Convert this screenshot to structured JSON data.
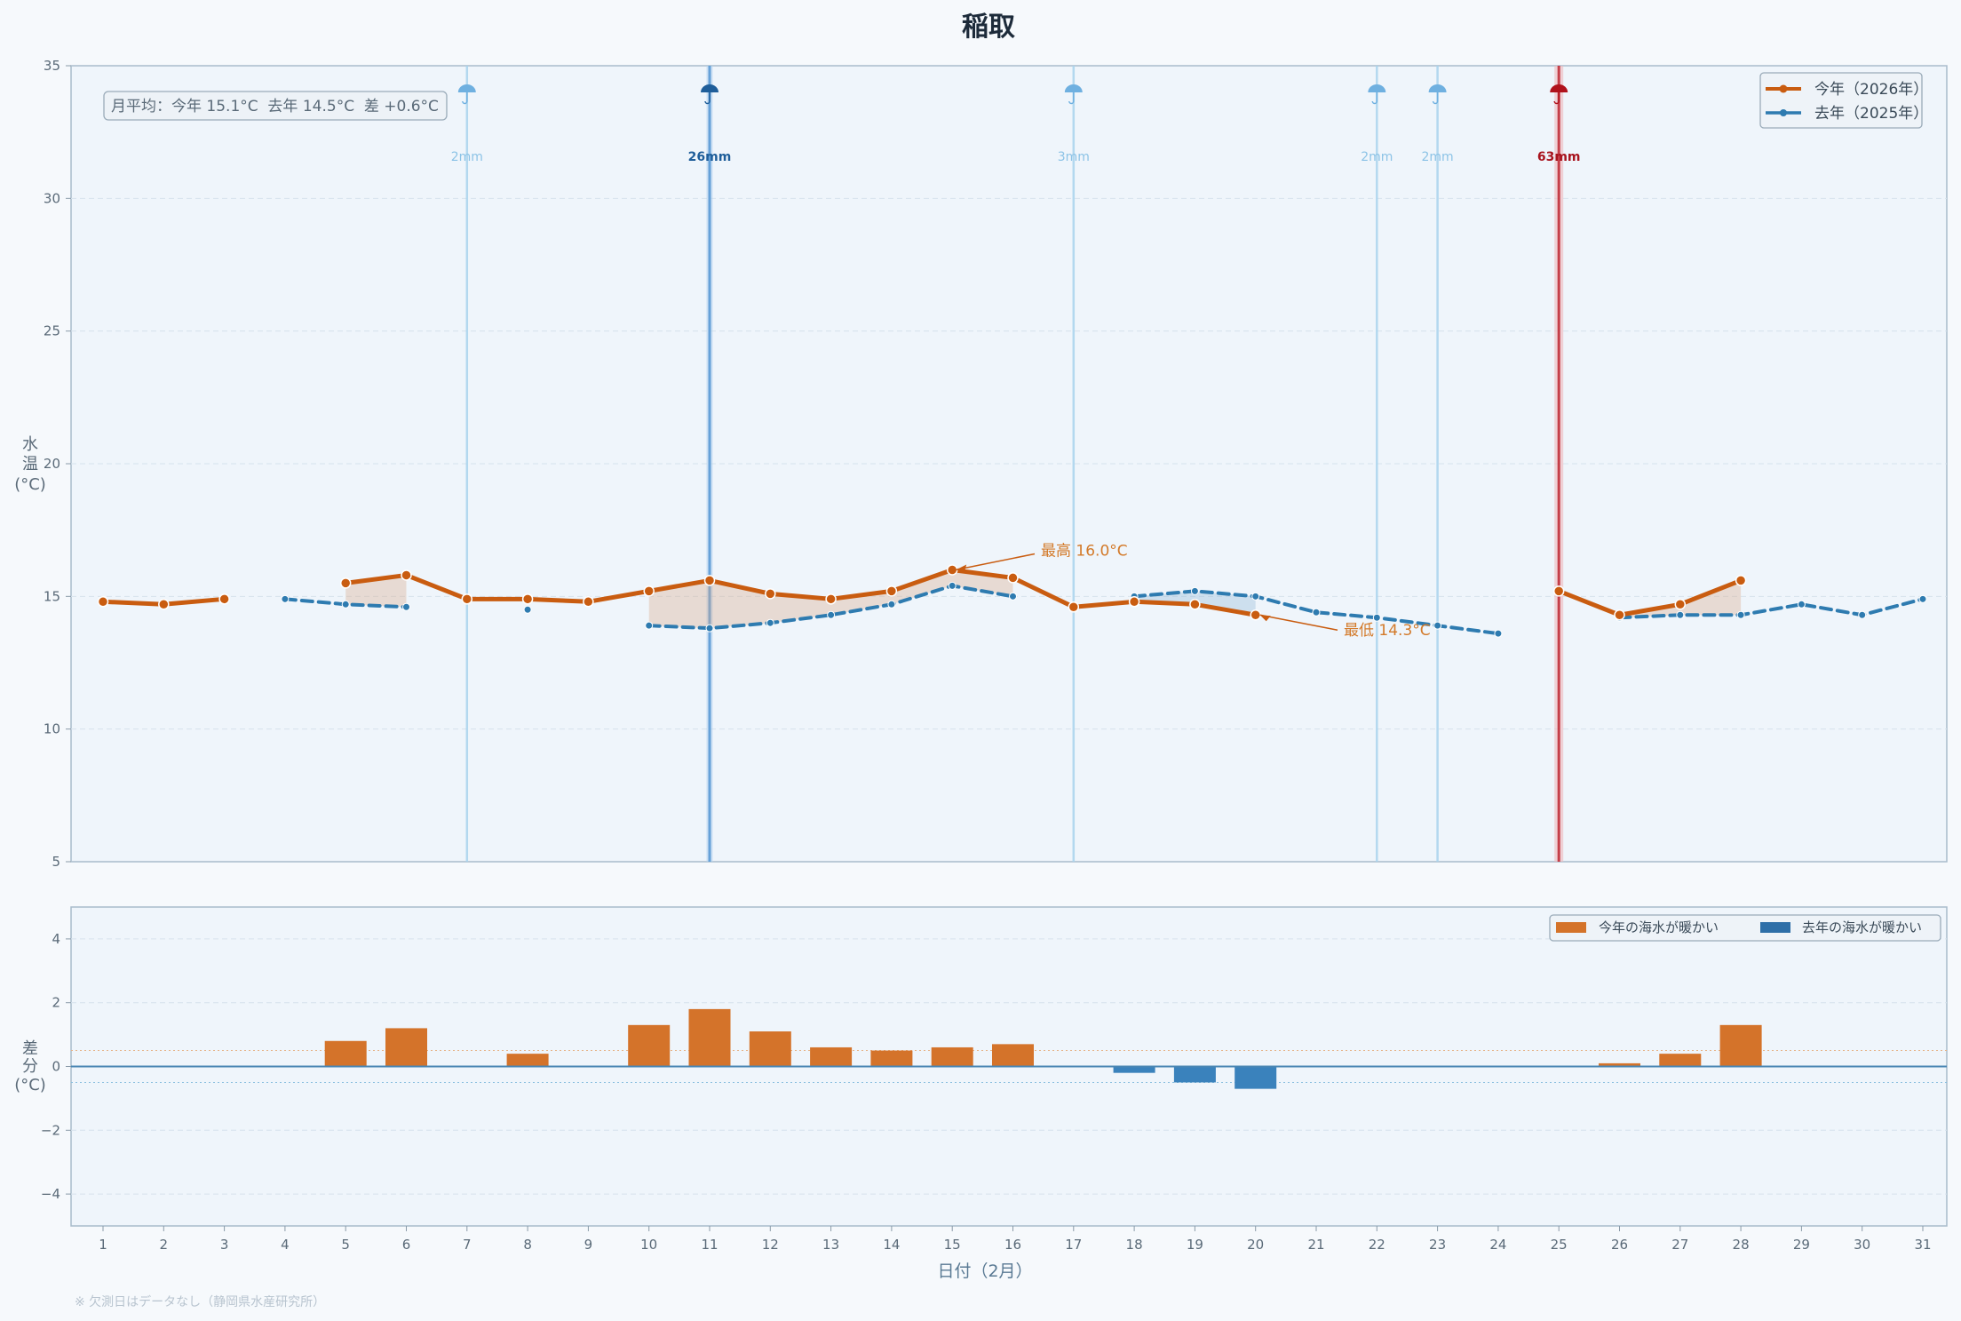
{
  "colors": {
    "this_year": "#c95c10",
    "last_year": "#2e7bb0",
    "diff_warm_this": "#d4732a",
    "diff_warm_last": "#3a82bc",
    "rain_light": "#a9d4ee",
    "rain_medium": "#5b9bd5",
    "rain_heavy": "#c0303a",
    "plot_bg": "#eff5fb",
    "frame": "#a9bccb"
  },
  "chart_data": [
    {
      "type": "line",
      "title": "稲取",
      "xlabel": "日付（2月）",
      "ylabel": "水温(°C)",
      "ylabel_chars": [
        "水",
        "温",
        "(°C)"
      ],
      "x": [
        1,
        2,
        3,
        4,
        5,
        6,
        7,
        8,
        9,
        10,
        11,
        12,
        13,
        14,
        15,
        16,
        17,
        18,
        19,
        20,
        21,
        22,
        23,
        24,
        25,
        26,
        27,
        28,
        29,
        30,
        31
      ],
      "ylim": [
        5,
        35
      ],
      "yticks": [
        5,
        10,
        15,
        20,
        25,
        30,
        35
      ],
      "series": [
        {
          "name": "今年（2026年）",
          "values": [
            14.8,
            14.7,
            14.9,
            null,
            15.5,
            15.8,
            14.9,
            14.9,
            14.8,
            15.2,
            15.6,
            15.1,
            14.9,
            15.2,
            16.0,
            15.7,
            14.6,
            14.8,
            14.7,
            14.3,
            null,
            null,
            null,
            null,
            15.2,
            14.3,
            14.7,
            15.6,
            null,
            null,
            null
          ]
        },
        {
          "name": "去年（2025年）",
          "values": [
            null,
            null,
            null,
            14.9,
            14.7,
            14.6,
            null,
            14.5,
            null,
            13.9,
            13.8,
            14.0,
            14.3,
            14.7,
            15.4,
            15.0,
            null,
            15.0,
            15.2,
            15.0,
            14.4,
            14.2,
            13.9,
            13.6,
            null,
            14.2,
            14.3,
            14.3,
            14.7,
            14.3,
            14.9
          ]
        }
      ],
      "legend": [
        "今年（2026年）",
        "去年（2025年）"
      ],
      "legend_position": "top-right",
      "stats_text": "月平均：今年 15.1°C  去年 14.5°C  差 +0.6°C",
      "rain_events": [
        {
          "day": 7,
          "label": "2mm",
          "level": "light"
        },
        {
          "day": 11,
          "label": "26mm",
          "level": "medium"
        },
        {
          "day": 17,
          "label": "3mm",
          "level": "light"
        },
        {
          "day": 22,
          "label": "2mm",
          "level": "light"
        },
        {
          "day": 23,
          "label": "2mm",
          "level": "light"
        },
        {
          "day": 25,
          "label": "63mm",
          "level": "heavy"
        }
      ],
      "annotations": [
        {
          "text": "最高 16.0°C",
          "day": 15,
          "value": 16.0
        },
        {
          "text": "最低 14.3°C",
          "day": 20,
          "value": 14.3
        }
      ]
    },
    {
      "type": "bar",
      "ylabel_chars": [
        "差",
        "分",
        "(°C)"
      ],
      "x": [
        1,
        2,
        3,
        4,
        5,
        6,
        7,
        8,
        9,
        10,
        11,
        12,
        13,
        14,
        15,
        16,
        17,
        18,
        19,
        20,
        21,
        22,
        23,
        24,
        25,
        26,
        27,
        28,
        29,
        30,
        31
      ],
      "values": [
        null,
        null,
        null,
        null,
        0.8,
        1.2,
        null,
        0.4,
        null,
        1.3,
        1.8,
        1.1,
        0.6,
        0.5,
        0.6,
        0.7,
        null,
        -0.2,
        -0.5,
        -0.7,
        null,
        null,
        null,
        null,
        null,
        0.1,
        0.4,
        1.3,
        null,
        null,
        null
      ],
      "ylim": [
        -5,
        5
      ],
      "yticks": [
        -4,
        -2,
        0,
        2,
        4
      ],
      "ytick_labels": [
        "−4",
        "−2",
        "0",
        "2",
        "4"
      ],
      "legend": [
        "今年の海水が暖かい",
        "去年の海水が暖かい"
      ],
      "legend_position": "top-right"
    }
  ],
  "footnote": "※ 欠測日はデータなし（静岡県水産研究所）"
}
